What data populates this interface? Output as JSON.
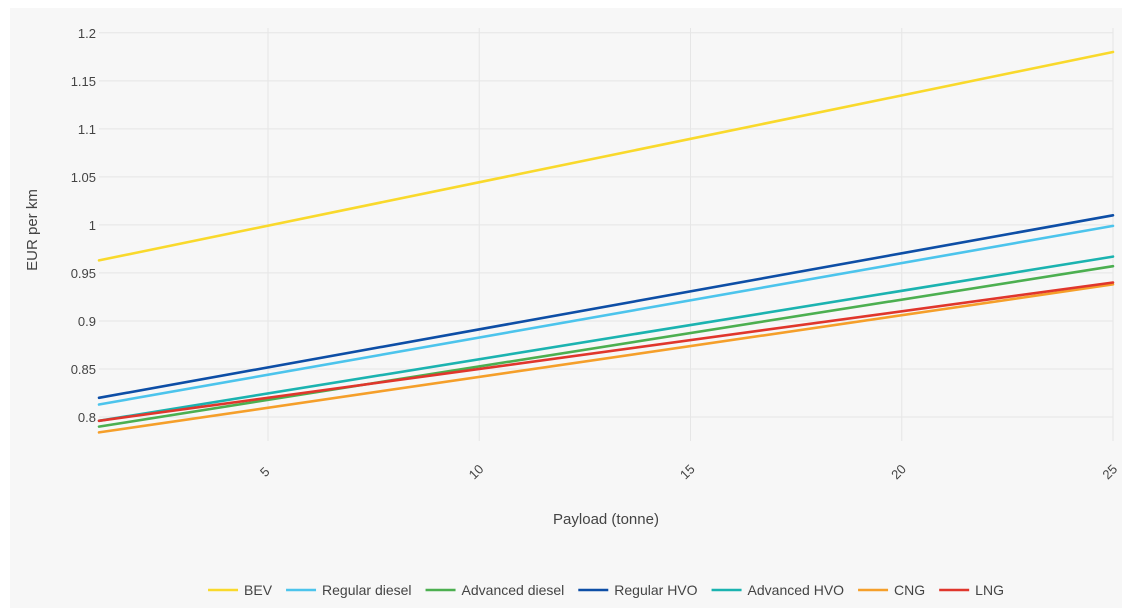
{
  "chart_data": {
    "type": "line",
    "title": "",
    "xlabel": "Payload (tonne)",
    "ylabel": "EUR per km",
    "xlim": [
      1,
      25
    ],
    "ylim": [
      0.775,
      1.205
    ],
    "xticks": [
      5,
      10,
      15,
      20,
      25
    ],
    "xtick_labels": [
      "5",
      "10",
      "15",
      "20",
      "25"
    ],
    "yticks": [
      0.8,
      0.85,
      0.9,
      0.95,
      1.0,
      1.05,
      1.1,
      1.15,
      1.2
    ],
    "ytick_labels": [
      "0.8",
      "0.85",
      "0.9",
      "0.95",
      "1",
      "1.05",
      "1.1",
      "1.15",
      "1.2"
    ],
    "grid": true,
    "legend_position": "bottom-center",
    "background_color": "#f7f7f7",
    "series": [
      {
        "name": "BEV",
        "color": "#f9d92c",
        "x": [
          1,
          25
        ],
        "y": [
          0.963,
          1.18
        ]
      },
      {
        "name": "Regular diesel",
        "color": "#4cc4ec",
        "x": [
          1,
          25
        ],
        "y": [
          0.813,
          0.999
        ]
      },
      {
        "name": "Advanced diesel",
        "color": "#4caf50",
        "x": [
          1,
          25
        ],
        "y": [
          0.79,
          0.957
        ]
      },
      {
        "name": "Regular HVO",
        "color": "#0d4ea6",
        "x": [
          1,
          25
        ],
        "y": [
          0.82,
          1.01
        ]
      },
      {
        "name": "Advanced HVO",
        "color": "#1bb3b0",
        "x": [
          1,
          25
        ],
        "y": [
          0.796,
          0.967
        ]
      },
      {
        "name": "CNG",
        "color": "#f59f2a",
        "x": [
          1,
          25
        ],
        "y": [
          0.784,
          0.938
        ]
      },
      {
        "name": "LNG",
        "color": "#e0362c",
        "x": [
          1,
          25
        ],
        "y": [
          0.796,
          0.94
        ]
      }
    ]
  }
}
